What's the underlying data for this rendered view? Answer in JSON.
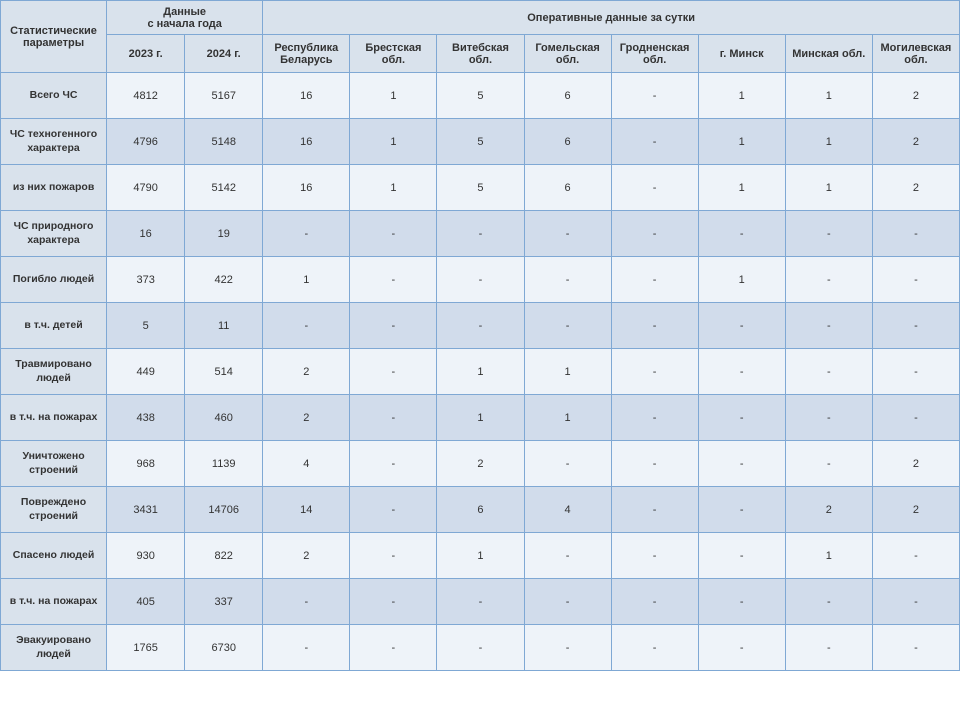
{
  "header": {
    "param_col": "Статистические параметры",
    "year_group": "Данные\nс начала года",
    "daily_group": "Оперативные данные за сутки",
    "years": [
      "2023 г.",
      "2024 г."
    ],
    "regions": [
      "Республика Беларусь",
      "Брестская обл.",
      "Витебская обл.",
      "Гомельская обл.",
      "Гродненская обл.",
      "г. Минск",
      "Минская обл.",
      "Могилевская обл."
    ]
  },
  "rows": [
    {
      "label": "Всего ЧС",
      "cells": [
        "4812",
        "5167",
        "16",
        "1",
        "5",
        "6",
        "-",
        "1",
        "1",
        "2"
      ]
    },
    {
      "label": "ЧС техногенного характера",
      "cells": [
        "4796",
        "5148",
        "16",
        "1",
        "5",
        "6",
        "-",
        "1",
        "1",
        "2"
      ]
    },
    {
      "label": "из них пожаров",
      "cells": [
        "4790",
        "5142",
        "16",
        "1",
        "5",
        "6",
        "-",
        "1",
        "1",
        "2"
      ]
    },
    {
      "label": "ЧС природного характера",
      "cells": [
        "16",
        "19",
        "-",
        "-",
        "-",
        "-",
        "-",
        "-",
        "-",
        "-"
      ]
    },
    {
      "label": "Погибло людей",
      "cells": [
        "373",
        "422",
        "1",
        "-",
        "-",
        "-",
        "-",
        "1",
        "-",
        "-"
      ]
    },
    {
      "label": "в т.ч. детей",
      "cells": [
        "5",
        "11",
        "-",
        "-",
        "-",
        "-",
        "-",
        "-",
        "-",
        "-"
      ]
    },
    {
      "label": "Травмировано людей",
      "cells": [
        "449",
        "514",
        "2",
        "-",
        "1",
        "1",
        "-",
        "-",
        "-",
        "-"
      ]
    },
    {
      "label": "в т.ч. на пожарах",
      "cells": [
        "438",
        "460",
        "2",
        "-",
        "1",
        "1",
        "-",
        "-",
        "-",
        "-"
      ]
    },
    {
      "label": "Уничтожено строений",
      "cells": [
        "968",
        "1139",
        "4",
        "-",
        "2",
        "-",
        "-",
        "-",
        "-",
        "2"
      ]
    },
    {
      "label": "Повреждено строений",
      "cells": [
        "3431",
        "14706",
        "14",
        "-",
        "6",
        "4",
        "-",
        "-",
        "2",
        "2"
      ]
    },
    {
      "label": "Спасено людей",
      "cells": [
        "930",
        "822",
        "2",
        "-",
        "1",
        "-",
        "-",
        "-",
        "1",
        "-"
      ]
    },
    {
      "label": "в т.ч. на пожарах",
      "cells": [
        "405",
        "337",
        "-",
        "-",
        "-",
        "-",
        "-",
        "-",
        "-",
        "-"
      ]
    },
    {
      "label": "Эвакуировано людей",
      "cells": [
        "1765",
        "6730",
        "-",
        "-",
        "-",
        "-",
        "-",
        "-",
        "-",
        "-"
      ]
    }
  ],
  "style": {
    "border_color": "#7fa8d4",
    "header_bg": "#d9e2ec",
    "row_even_bg": "#eef3f9",
    "row_odd_bg": "#d1dceb",
    "text_color": "#333333",
    "font_size_header": 11,
    "font_size_cell": 11
  }
}
